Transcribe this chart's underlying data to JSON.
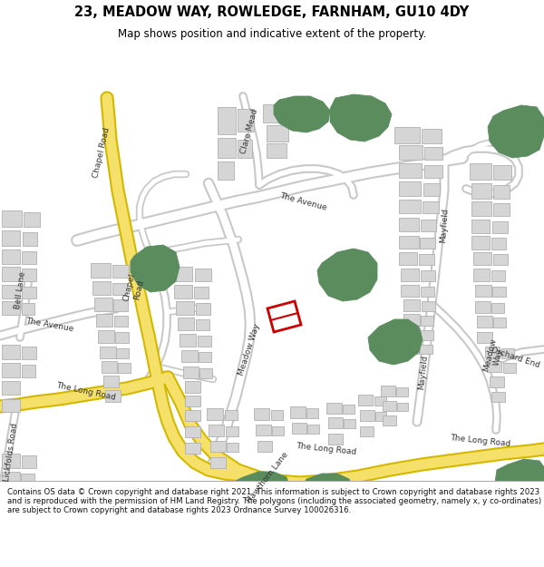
{
  "title": "23, MEADOW WAY, ROWLEDGE, FARNHAM, GU10 4DY",
  "subtitle": "Map shows position and indicative extent of the property.",
  "footer": "Contains OS data © Crown copyright and database right 2021. This information is subject to Crown copyright and database rights 2023 and is reproduced with the permission of HM Land Registry. The polygons (including the associated geometry, namely x, y co-ordinates) are subject to Crown copyright and database rights 2023 Ordnance Survey 100026316.",
  "bg_color": "#ffffff",
  "map_bg": "#f2f2f2",
  "road_fill": "#ffffff",
  "road_outline": "#c8c8c8",
  "yellow_road": "#f5e06a",
  "yellow_road_outline": "#d4b800",
  "green_color": "#5a8c5e",
  "building_color": "#d5d5d5",
  "building_outline": "#b0b0b0",
  "highlight_color": "#cc0000",
  "text_color": "#333333"
}
